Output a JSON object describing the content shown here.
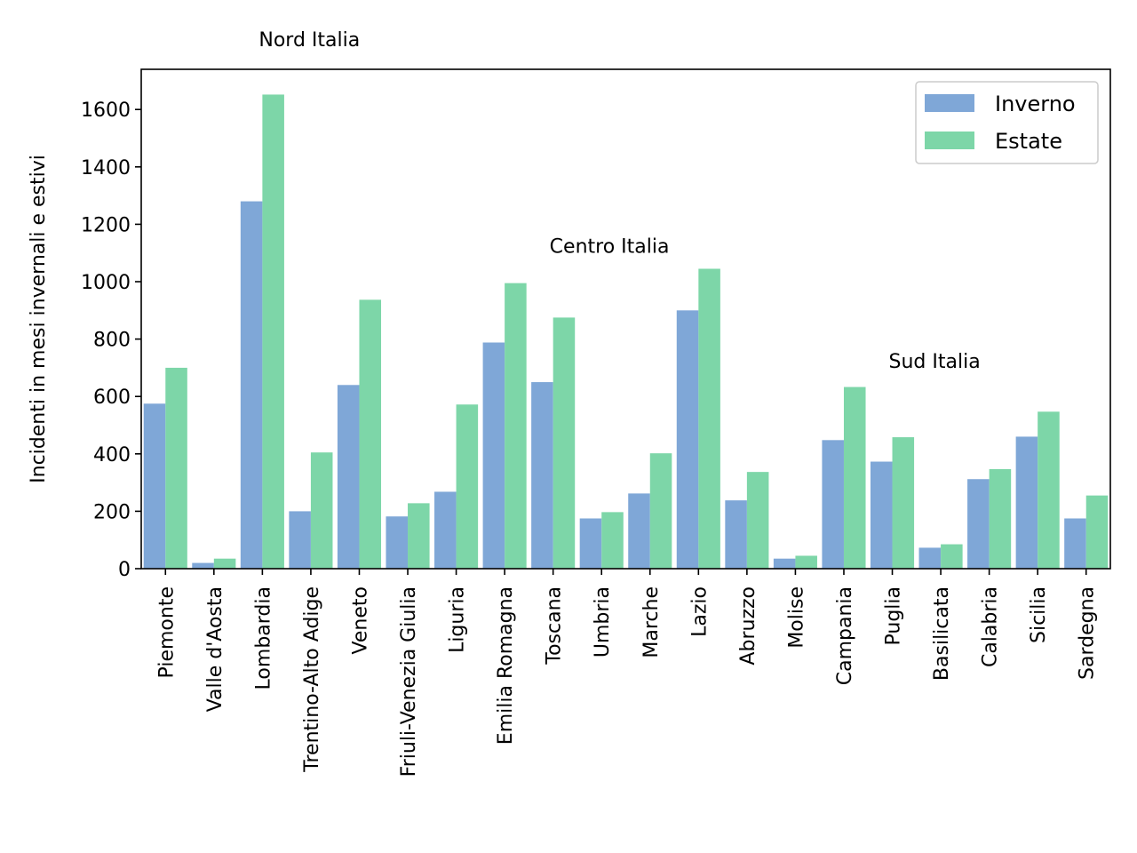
{
  "chart_data": {
    "type": "bar",
    "title": "",
    "xlabel": "",
    "ylabel": "Incidenti in mesi invernali e estivi",
    "ylim": [
      0,
      1740
    ],
    "yticks": [
      0,
      200,
      400,
      600,
      800,
      1000,
      1200,
      1400,
      1600
    ],
    "grid": false,
    "legend_position": "top-right",
    "categories": [
      "Piemonte",
      "Valle d'Aosta",
      "Lombardia",
      "Trentino-Alto Adige",
      "Veneto",
      "Friuli-Venezia Giulia",
      "Liguria",
      "Emilia Romagna",
      "Toscana",
      "Umbria",
      "Marche",
      "Lazio",
      "Abruzzo",
      "Molise",
      "Campania",
      "Puglia",
      "Basilicata",
      "Calabria",
      "Sicilia",
      "Sardegna"
    ],
    "series": [
      {
        "name": "Inverno",
        "color": "#7fa7d7",
        "values": [
          575,
          20,
          1280,
          200,
          640,
          182,
          268,
          788,
          650,
          175,
          262,
          900,
          238,
          35,
          448,
          373,
          73,
          312,
          460,
          175
        ]
      },
      {
        "name": "Estate",
        "color": "#7dd6a8",
        "values": [
          700,
          35,
          1652,
          405,
          937,
          228,
          572,
          995,
          875,
          197,
          402,
          1045,
          337,
          45,
          633,
          458,
          85,
          347,
          547,
          255
        ]
      }
    ],
    "annotations": [
      {
        "text": "Nord Italia",
        "x": "Lombardia",
        "y": 1820
      },
      {
        "text": "Centro Italia",
        "x": "Toscana",
        "y": 1100
      },
      {
        "text": "Sud Italia",
        "x": "Puglia",
        "y": 700
      }
    ]
  }
}
